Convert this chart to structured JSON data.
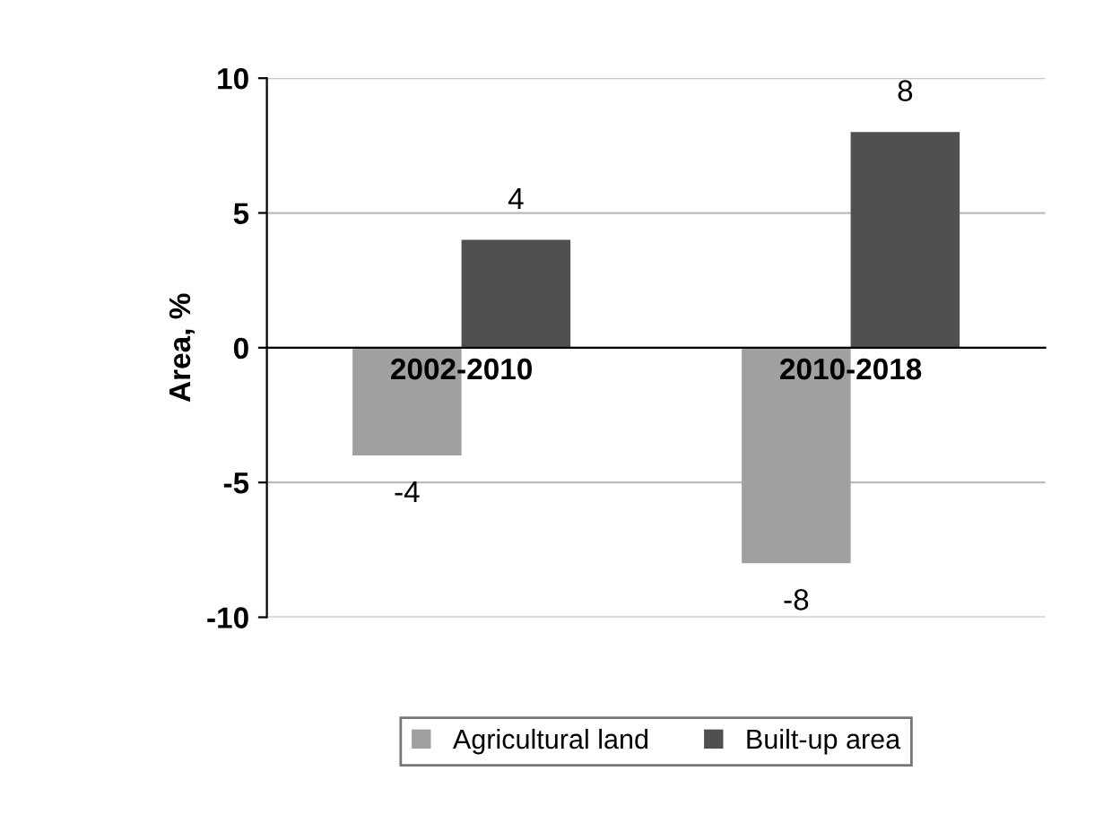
{
  "chart_data": {
    "type": "bar",
    "ylabel": "Area, %",
    "categories": [
      "2002-2010",
      "2010-2018"
    ],
    "series": [
      {
        "name": "Agricultural land",
        "color": "#a0a0a0",
        "values": [
          -4,
          -8
        ]
      },
      {
        "name": "Built-up area",
        "color": "#505050",
        "values": [
          4,
          8
        ]
      }
    ],
    "ylim": [
      -10,
      10
    ],
    "yticks": [
      -10,
      -5,
      0,
      5,
      10
    ],
    "grid": "y",
    "legend": "bottom",
    "data_labels": true
  }
}
